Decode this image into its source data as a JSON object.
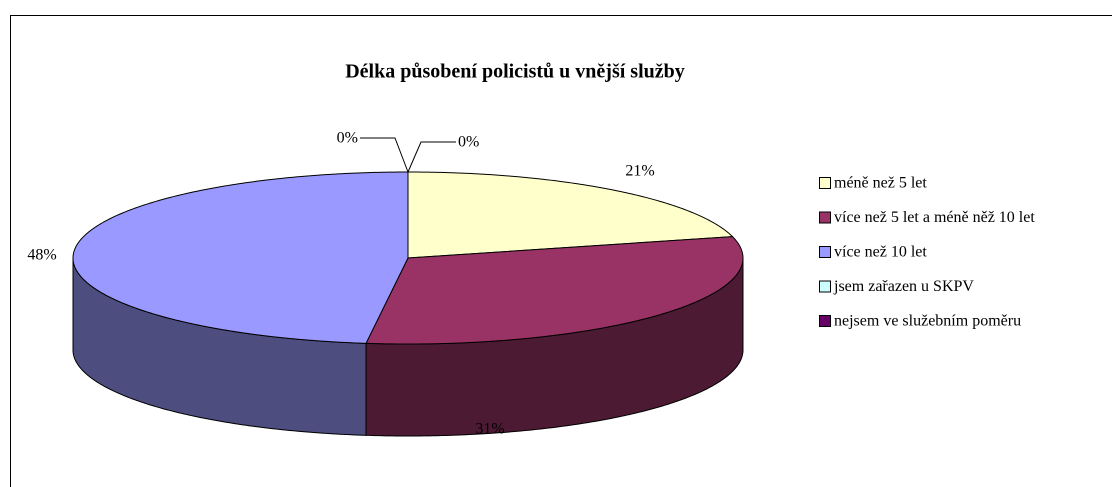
{
  "chart_data": {
    "type": "pie",
    "title": "Délka působení policistů u vnější služby",
    "categories": [
      "méně než 5 let",
      "více než 5 let a méně něž 10 let",
      "více než 10 let",
      "jsem zařazen u SKPV",
      "nejsem ve služebním poměru"
    ],
    "values": [
      21,
      31,
      48,
      0,
      0
    ],
    "value_labels": [
      "21%",
      "31%",
      "48%",
      "0%",
      "0%"
    ],
    "colors": [
      "#ffffcc",
      "#993366",
      "#9999ff",
      "#ccffff",
      "#660066"
    ],
    "legend": "right"
  }
}
